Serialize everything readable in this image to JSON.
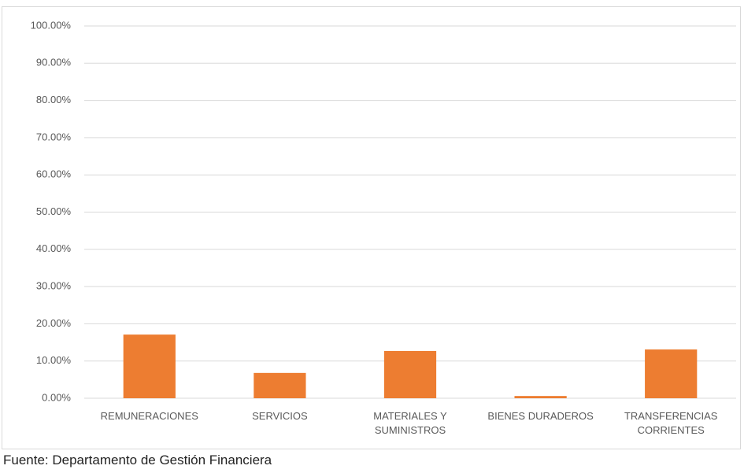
{
  "chart_data": {
    "type": "bar",
    "categories": [
      "REMUNERACIONES",
      "SERVICIOS",
      "MATERIALES Y\nSUMINISTROS",
      "BIENES DURADEROS",
      "TRANSFERENCIAS\nCORRIENTES"
    ],
    "values": [
      17.1,
      6.8,
      12.7,
      0.6,
      13.1
    ],
    "color": "#ed7d31",
    "ylim": [
      0,
      100
    ],
    "yticks": [
      {
        "value": 0,
        "label": "0.00%"
      },
      {
        "value": 10,
        "label": "10.00%"
      },
      {
        "value": 20,
        "label": "20.00%"
      },
      {
        "value": 30,
        "label": "30.00%"
      },
      {
        "value": 40,
        "label": "40.00%"
      },
      {
        "value": 50,
        "label": "50.00%"
      },
      {
        "value": 60,
        "label": "60.00%"
      },
      {
        "value": 70,
        "label": "70.00%"
      },
      {
        "value": 80,
        "label": "80.00%"
      },
      {
        "value": 90,
        "label": "90.00%"
      },
      {
        "value": 100,
        "label": "100.00%"
      }
    ],
    "grid": true,
    "source": "Fuente: Departamento de Gestión Financiera"
  }
}
